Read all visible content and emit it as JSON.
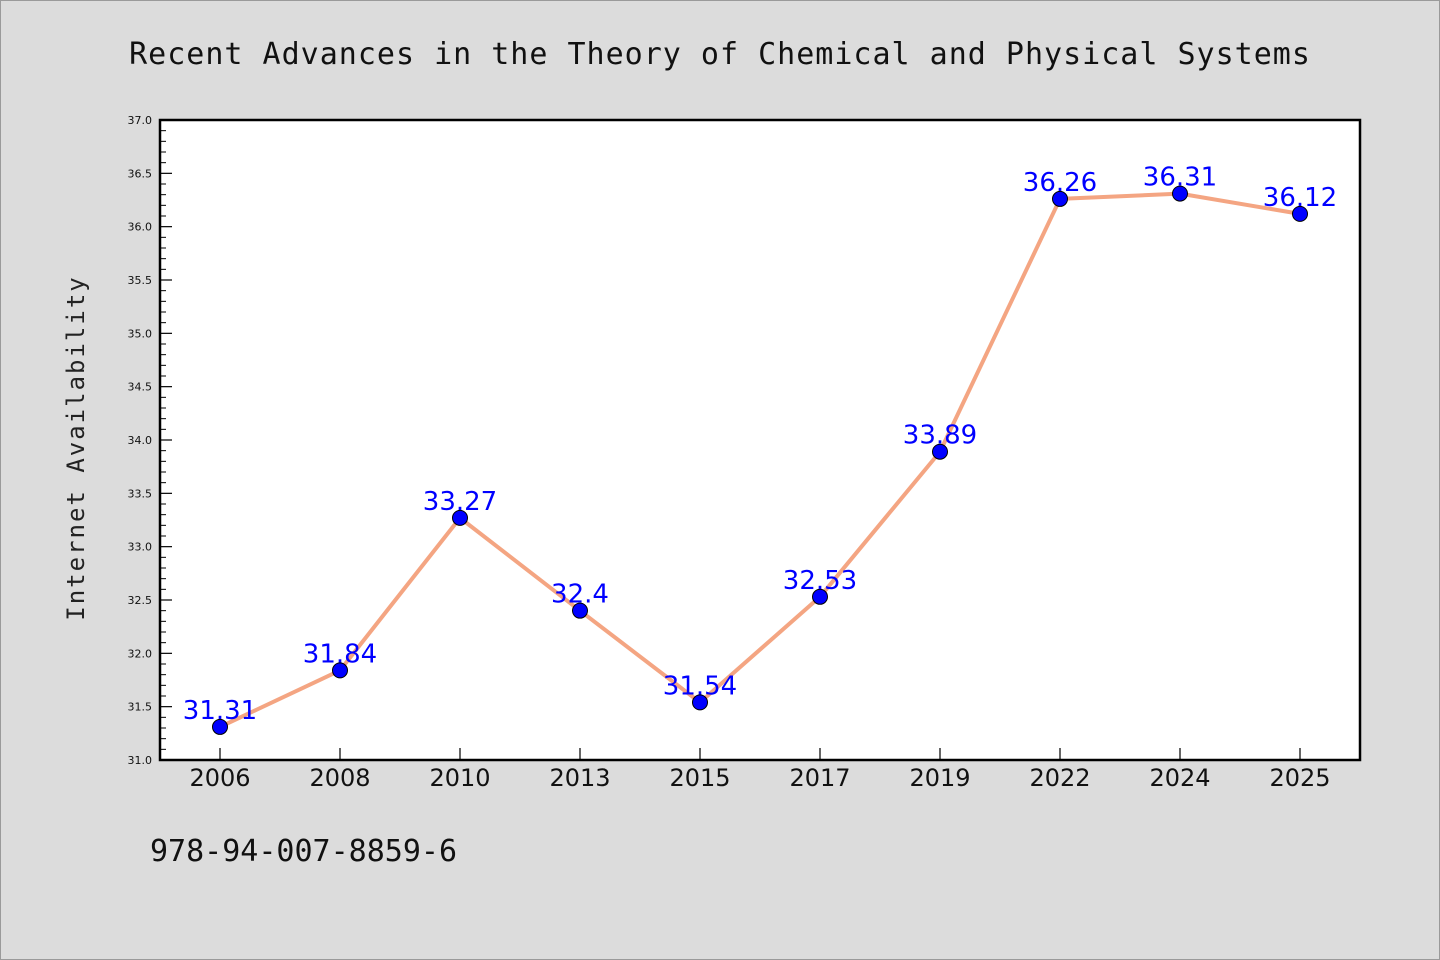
{
  "chart_data": {
    "type": "line",
    "title": "Recent Advances in the Theory of Chemical and Physical Systems",
    "xlabel": "",
    "ylabel": "Internet Availability",
    "categories": [
      "2006",
      "2008",
      "2010",
      "2013",
      "2015",
      "2017",
      "2019",
      "2022",
      "2024",
      "2025"
    ],
    "series": [
      {
        "values": [
          31.31,
          31.84,
          33.27,
          32.4,
          31.54,
          32.53,
          33.89,
          36.26,
          36.31,
          36.12
        ],
        "data_labels": [
          "31.31",
          "31.84",
          "33.27",
          "32.4",
          "31.54",
          "32.53",
          "33.89",
          "36.26",
          "36.31",
          "36.12"
        ]
      }
    ],
    "ylim": [
      31.0,
      37.0
    ],
    "yticks": [
      "31.0",
      "31.5",
      "32.0",
      "32.5",
      "33.0",
      "33.5",
      "34.0",
      "34.5",
      "35.0",
      "35.5",
      "36.0",
      "36.5",
      "37.0"
    ],
    "grid": false,
    "legend": "none",
    "colors": {
      "line": "#f4a582",
      "marker": "#0000ff",
      "label": "#0000ff",
      "plot_background": "#ffffff",
      "figure_background": "#dcdcdc"
    }
  },
  "footer": {
    "isbn": "978-94-007-8859-6"
  }
}
